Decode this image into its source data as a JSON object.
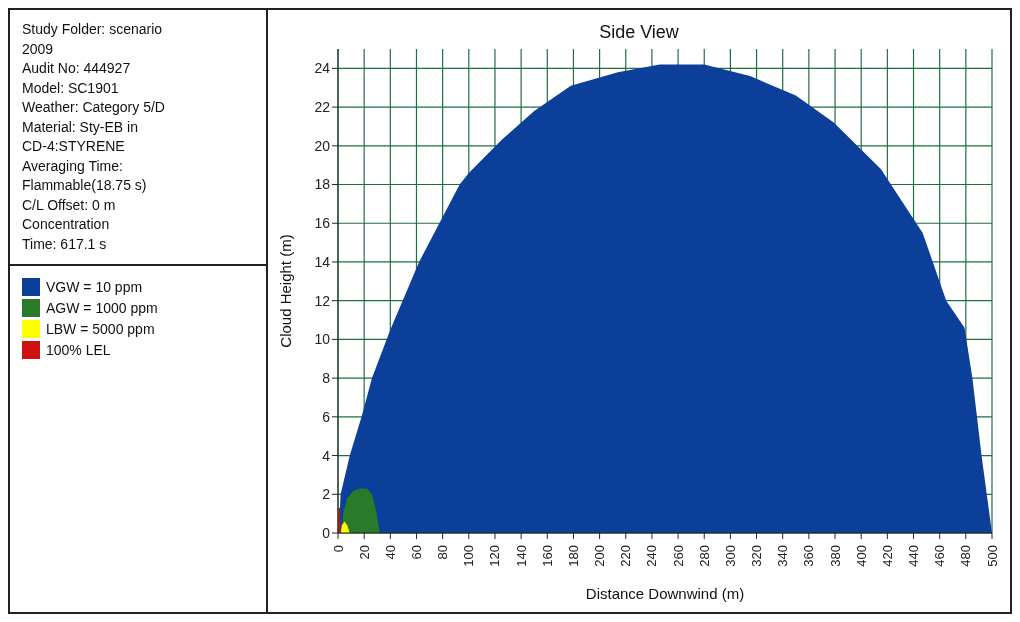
{
  "chart_data": {
    "type": "area",
    "title": "Side View",
    "xlabel": "Distance Downwind (m)",
    "ylabel": "Cloud Height (m)",
    "annotations": [
      "Study Folder: scenario",
      "2009",
      "Audit No: 444927",
      "Model: SC1901",
      "Weather: Category 5/D",
      "Material: Sty-EB in",
      "CD-4:STYRENE",
      "Averaging Time:",
      "Flammable(18.75 s)",
      "C/L Offset: 0 m",
      "Concentration",
      "Time: 617.1 s"
    ],
    "xlim": [
      0,
      500
    ],
    "xticks": [
      0,
      20,
      40,
      60,
      80,
      100,
      120,
      140,
      160,
      180,
      200,
      220,
      240,
      260,
      280,
      300,
      320,
      340,
      360,
      380,
      400,
      420,
      440,
      460,
      480,
      500
    ],
    "ylim": [
      0,
      25
    ],
    "yticks": [
      0,
      2,
      4,
      6,
      8,
      10,
      12,
      14,
      16,
      18,
      20,
      22,
      24
    ],
    "grid": true,
    "legend": "left",
    "series": [
      {
        "name": "VGW = 10 ppm",
        "color": "#0b3f9a",
        "x": [
          0,
          1,
          2,
          9,
          18,
          26,
          40,
          62,
          93,
          100,
          125,
          150,
          178,
          214,
          246,
          280,
          315,
          350,
          379,
          415,
          447,
          465,
          479,
          485,
          492,
          498,
          500
        ],
        "values": [
          0,
          0.5,
          2,
          4,
          6,
          8,
          10.5,
          14,
          18,
          18.6,
          20.3,
          21.8,
          23.1,
          23.8,
          24.2,
          24.2,
          23.6,
          22.6,
          21.2,
          18.8,
          15.5,
          12,
          10.6,
          8,
          4,
          1,
          0
        ]
      },
      {
        "name": "AGW = 1000 ppm",
        "color": "#2a7a2a",
        "x": [
          3,
          4,
          7,
          12,
          17,
          22,
          26,
          29,
          31,
          32
        ],
        "values": [
          0,
          1,
          1.8,
          2.2,
          2.3,
          2.3,
          2,
          1.2,
          0.4,
          0
        ]
      },
      {
        "name": "LBW = 5000 ppm",
        "color": "#ffff00",
        "x": [
          2,
          3,
          5,
          7,
          9
        ],
        "values": [
          0,
          0.4,
          0.6,
          0.4,
          0
        ]
      },
      {
        "name": "100% LEL",
        "color": "#d01010",
        "x": [
          0,
          0.3,
          1.5,
          2
        ],
        "values": [
          0,
          1.3,
          1.3,
          0
        ]
      }
    ]
  }
}
